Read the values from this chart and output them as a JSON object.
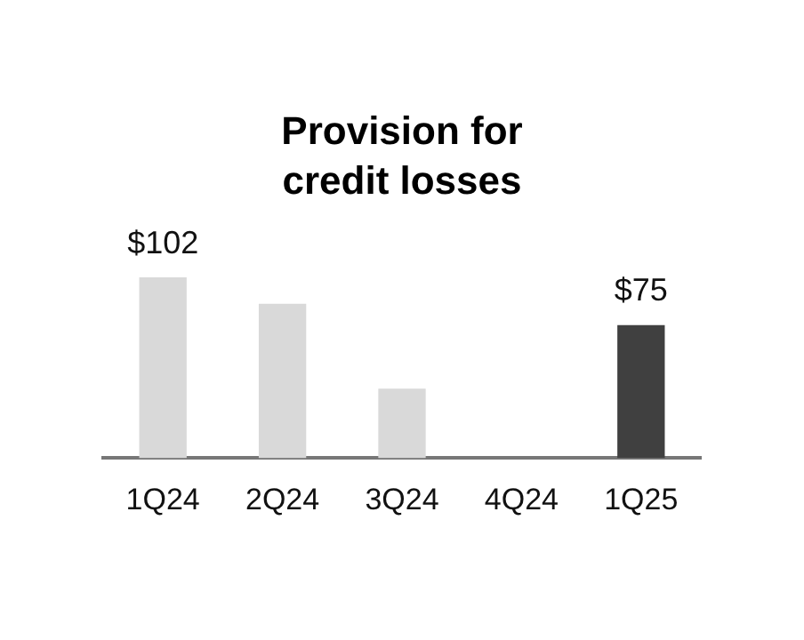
{
  "chart_data": {
    "type": "bar",
    "title": "Provision for credit losses",
    "categories": [
      "1Q24",
      "2Q24",
      "3Q24",
      "4Q24",
      "1Q25"
    ],
    "values": [
      102,
      87,
      39,
      null,
      75
    ],
    "colors": [
      "#d9d9d9",
      "#d9d9d9",
      "#d9d9d9",
      "#d9d9d9",
      "#404040"
    ],
    "value_labels": [
      "$102",
      null,
      null,
      null,
      "$75"
    ],
    "grid": false,
    "legend": false
  }
}
